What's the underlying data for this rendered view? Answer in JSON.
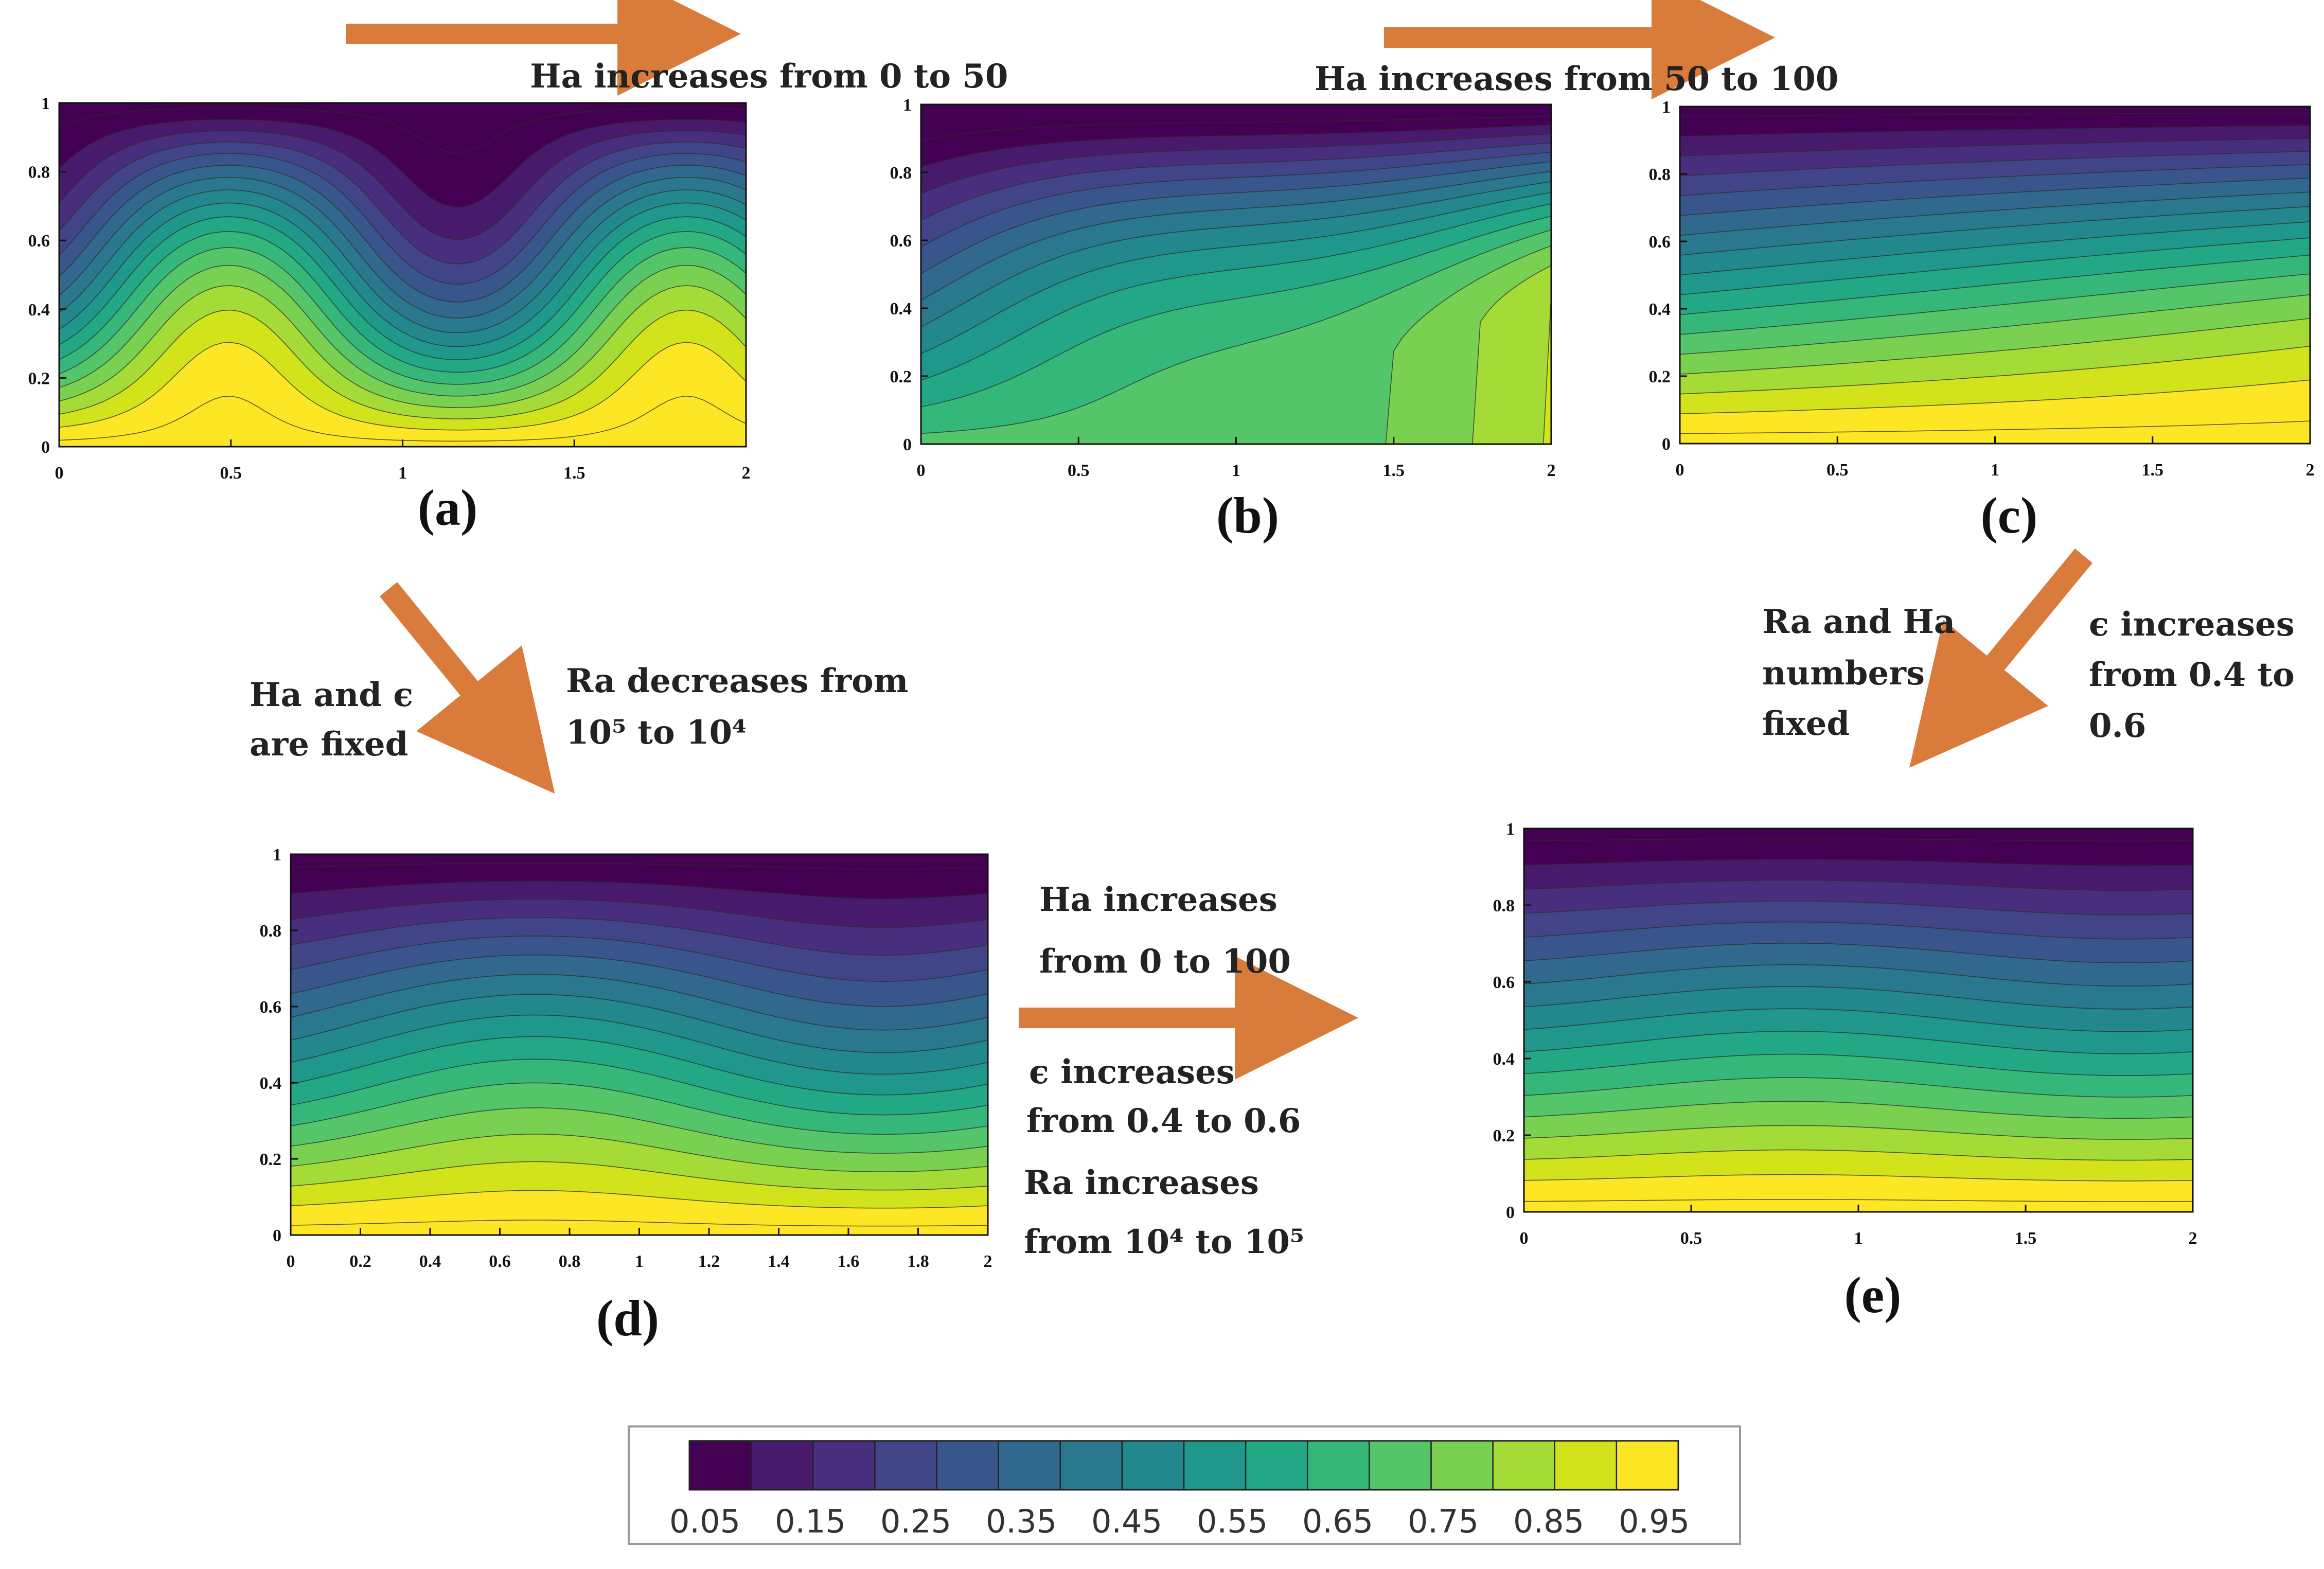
{
  "colors": {
    "arrow": "#D97B3A",
    "colormap": [
      "#440154",
      "#481a6c",
      "#472f7d",
      "#414487",
      "#39568c",
      "#31688e",
      "#2a788e",
      "#23888e",
      "#1f988b",
      "#22a884",
      "#35b779",
      "#54c568",
      "#7ad151",
      "#a5db36",
      "#d2e21b",
      "#fde725"
    ]
  },
  "panels": [
    {
      "id": "a",
      "label": "(a)",
      "mode": "cells",
      "xticks": [
        "0",
        "0.5",
        "1",
        "1.5",
        "2"
      ],
      "yticks": [
        "0",
        "0.2",
        "0.4",
        "0.6",
        "0.8",
        "1"
      ]
    },
    {
      "id": "b",
      "label": "(b)",
      "mode": "tilt",
      "xticks": [
        "0",
        "0.5",
        "1",
        "1.5",
        "2"
      ],
      "yticks": [
        "0",
        "0.2",
        "0.4",
        "0.6",
        "0.8",
        "1"
      ]
    },
    {
      "id": "c",
      "label": "(c)",
      "mode": "mild",
      "xticks": [
        "0",
        "0.5",
        "1",
        "1.5",
        "2"
      ],
      "yticks": [
        "0",
        "0.2",
        "0.4",
        "0.6",
        "0.8",
        "1"
      ]
    },
    {
      "id": "d",
      "label": "(d)",
      "mode": "wave",
      "xticks": [
        "0",
        "0.2",
        "0.4",
        "0.6",
        "0.8",
        "1",
        "1.2",
        "1.4",
        "1.6",
        "1.8",
        "2"
      ],
      "yticks": [
        "0",
        "0.2",
        "0.4",
        "0.6",
        "0.8",
        "1"
      ]
    },
    {
      "id": "e",
      "label": "(e)",
      "mode": "flat",
      "xticks": [
        "0",
        "0.5",
        "1",
        "1.5",
        "2"
      ],
      "yticks": [
        "0",
        "0.2",
        "0.4",
        "0.6",
        "0.8",
        "1"
      ]
    }
  ],
  "annotations": {
    "top_left": "Ha increases from 0 to 50",
    "top_right": "Ha increases from 50 to 100",
    "left_fixed_1": "Ha   and   ϵ",
    "left_fixed_2": "are fixed",
    "ra_dec_1": "Ra decreases from",
    "ra_dec_2": "10⁵ to 10⁴",
    "right_fixed_1": "Ra  and  Ha",
    "right_fixed_2": "numbers",
    "right_fixed_3": "fixed",
    "eps_1": "ϵ  increases",
    "eps_2": "from 0.4 to",
    "eps_3": "0.6",
    "mid_1": "Ha increases",
    "mid_2": "from 0 to 100",
    "mid_3": "ϵ increases",
    "mid_4": "from 0.4 to 0.6",
    "mid_5": "Ra increases",
    "mid_6": "from 10⁴ to 10⁵"
  },
  "colorbar": {
    "labels": [
      "0.05",
      "0.15",
      "0.25",
      "0.35",
      "0.45",
      "0.55",
      "0.65",
      "0.75",
      "0.85",
      "0.95"
    ],
    "range": [
      0,
      1
    ]
  }
}
